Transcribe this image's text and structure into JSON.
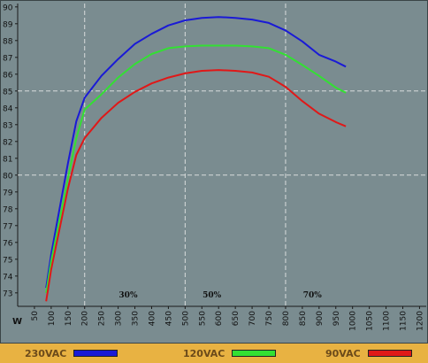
{
  "chart_data": {
    "type": "line",
    "xlabel": "W",
    "x_ticks": [
      50,
      100,
      150,
      200,
      250,
      300,
      350,
      400,
      450,
      500,
      550,
      600,
      650,
      700,
      750,
      800,
      850,
      900,
      950,
      1000,
      1050,
      1100,
      1150,
      1200
    ],
    "y_ticks": [
      73,
      74,
      75,
      76,
      77,
      78,
      79,
      80,
      81,
      82,
      83,
      84,
      85,
      86,
      87,
      88,
      89,
      90
    ],
    "xlim": [
      0,
      1220
    ],
    "ylim": [
      72.2,
      90.2
    ],
    "grid_x": [
      200,
      500,
      800
    ],
    "grid_y": [
      80,
      85
    ],
    "annotations": [
      {
        "text": "30%",
        "x": 330
      },
      {
        "text": "50%",
        "x": 580
      },
      {
        "text": "70%",
        "x": 880
      }
    ],
    "series": [
      {
        "name": "230VAC",
        "color": "#1a1ad6",
        "x": [
          85,
          100,
          150,
          175,
          200,
          250,
          300,
          350,
          400,
          450,
          500,
          550,
          600,
          650,
          700,
          750,
          800,
          850,
          900,
          950,
          980
        ],
        "y": [
          73.3,
          75.3,
          80.7,
          83.2,
          84.6,
          85.9,
          86.9,
          87.8,
          88.4,
          88.9,
          89.2,
          89.35,
          89.4,
          89.35,
          89.25,
          89.05,
          88.6,
          87.95,
          87.15,
          86.75,
          86.45
        ]
      },
      {
        "name": "120VAC",
        "color": "#33e033",
        "x": [
          85,
          100,
          150,
          175,
          200,
          250,
          300,
          350,
          400,
          450,
          500,
          550,
          600,
          650,
          700,
          750,
          800,
          850,
          900,
          950,
          980
        ],
        "y": [
          73.0,
          74.9,
          79.8,
          82.2,
          83.9,
          84.8,
          85.8,
          86.6,
          87.2,
          87.55,
          87.65,
          87.7,
          87.7,
          87.7,
          87.65,
          87.55,
          87.15,
          86.55,
          85.9,
          85.2,
          84.9
        ]
      },
      {
        "name": "90VAC",
        "color": "#e01818",
        "x": [
          85,
          100,
          150,
          175,
          200,
          250,
          300,
          350,
          400,
          450,
          500,
          550,
          600,
          650,
          700,
          750,
          800,
          850,
          900,
          950,
          980
        ],
        "y": [
          72.5,
          74.4,
          79.2,
          81.2,
          82.2,
          83.4,
          84.3,
          84.95,
          85.45,
          85.8,
          86.05,
          86.2,
          86.25,
          86.2,
          86.1,
          85.85,
          85.25,
          84.4,
          83.65,
          83.15,
          82.9
        ]
      }
    ]
  }
}
